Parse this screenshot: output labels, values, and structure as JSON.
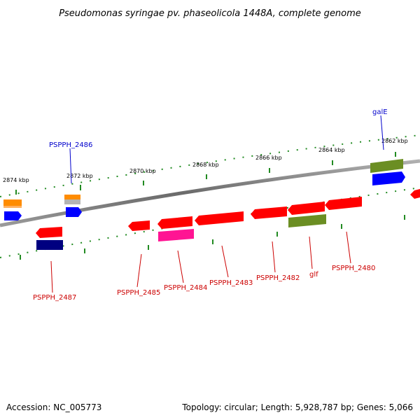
{
  "title": "Pseudomonas syringae pv. phaseolicola 1448A, complete genome",
  "footer": {
    "accession": "Accession: NC_005773",
    "summary": "Topology: circular; Length: 5,928,787 bp; Genes: 5,066"
  },
  "scale_labels": [
    "2874 kbp",
    "2872 kbp",
    "2870 kbp",
    "2868 kbp",
    "2866 kbp",
    "2864 kbp",
    "2862 kbp"
  ],
  "gene_labels": [
    {
      "id": "PSPPH_2486",
      "text": "PSPPH_2486",
      "color": "#0000cc"
    },
    {
      "id": "galE",
      "text": "galE",
      "color": "#0000cc"
    },
    {
      "id": "PSPPH_2487",
      "text": "PSPPH_2487",
      "color": "#cc0000"
    },
    {
      "id": "PSPPH_2485",
      "text": "PSPPH_2485",
      "color": "#cc0000"
    },
    {
      "id": "PSPPH_2484",
      "text": "PSPPH_2484",
      "color": "#cc0000"
    },
    {
      "id": "PSPPH_2483",
      "text": "PSPPH_2483",
      "color": "#cc0000"
    },
    {
      "id": "PSPPH_2482",
      "text": "PSPPH_2482",
      "color": "#cc0000"
    },
    {
      "id": "glf",
      "text": "glf",
      "color": "#cc0000"
    },
    {
      "id": "PSPPH_2480",
      "text": "PSPPH_2480",
      "color": "#cc0000"
    }
  ],
  "colors": {
    "gene_red": "#ff0000",
    "gene_blue": "#0000ff",
    "gene_navy": "#000080",
    "gene_orange": "#ff8c00",
    "gene_olive": "#6b8e23",
    "gene_magenta": "#ff1493",
    "tick_green": "#228b22",
    "backbone": "#808080"
  }
}
